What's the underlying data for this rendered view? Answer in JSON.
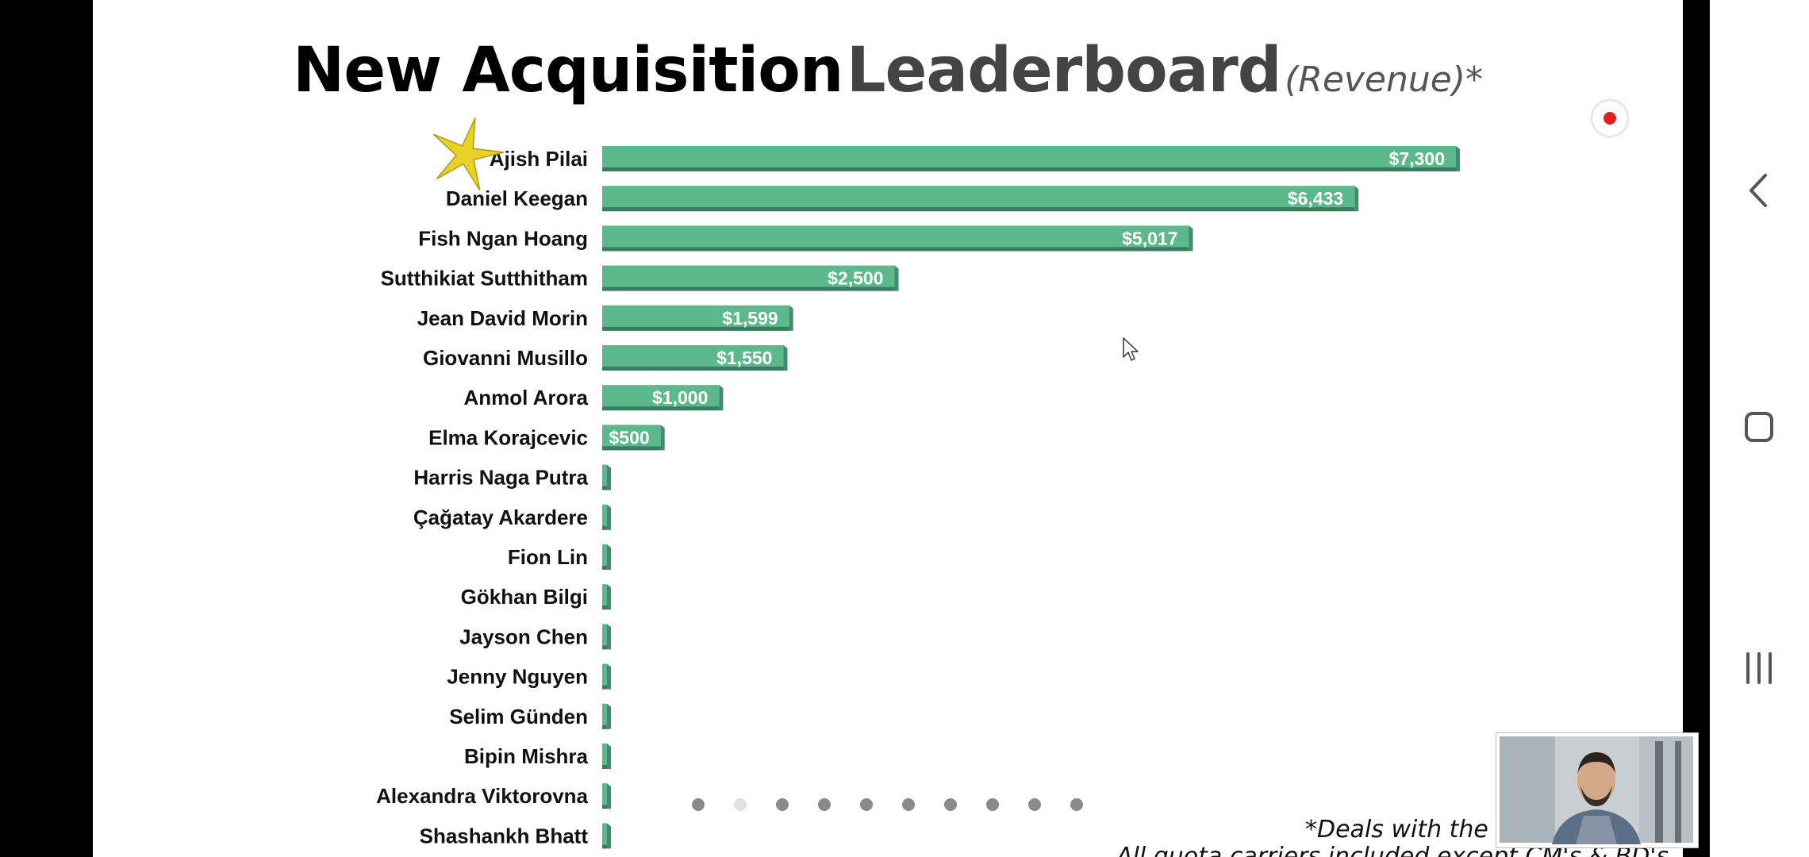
{
  "title": {
    "part1": "New Acquisition",
    "part2": "Leaderboard",
    "part3": "(Revenue)*"
  },
  "footnote": {
    "line1": "*Deals with the",
    "line2": "All quota carriers included except CM's & BD's"
  },
  "colors": {
    "bar": "#5cb98c",
    "bar_side": "#3f8e69",
    "bar_bottom": "#3a7d5e",
    "label": "#111111",
    "value": "#ffffff",
    "star": "#e8d227",
    "dot": "#8a8a8a",
    "dot_active": "#e0e0e0"
  },
  "pagination": {
    "count": 10,
    "active": 1
  },
  "chart_data": {
    "type": "bar",
    "orientation": "horizontal",
    "categories": [
      "Ajish Pilai",
      "Daniel Keegan",
      "Fish Ngan Hoang",
      "Sutthikiat Sutthitham",
      "Jean David Morin",
      "Giovanni Musillo",
      "Anmol Arora",
      "Elma Korajcevic",
      "Harris Naga Putra",
      "Çağatay Akardere",
      "Fion Lin",
      "Gökhan Bilgi",
      "Jayson Chen",
      "Jenny Nguyen",
      "Selim Günden",
      "Bipin Mishra",
      "Alexandra Viktorovna",
      "Shashankh Bhatt"
    ],
    "values": [
      7300,
      6433,
      5017,
      2500,
      1599,
      1550,
      1000,
      500,
      0,
      0,
      0,
      0,
      0,
      0,
      0,
      0,
      0,
      0
    ],
    "value_labels": [
      "$7,300",
      "$6,433",
      "$5,017",
      "$2,500",
      "$1,599",
      "$1,550",
      "$1,000",
      "$500",
      "",
      "",
      "",
      "",
      "",
      "",
      "",
      "",
      "",
      ""
    ],
    "xlim": [
      0,
      7300
    ],
    "leader_marker": "star-icon"
  }
}
